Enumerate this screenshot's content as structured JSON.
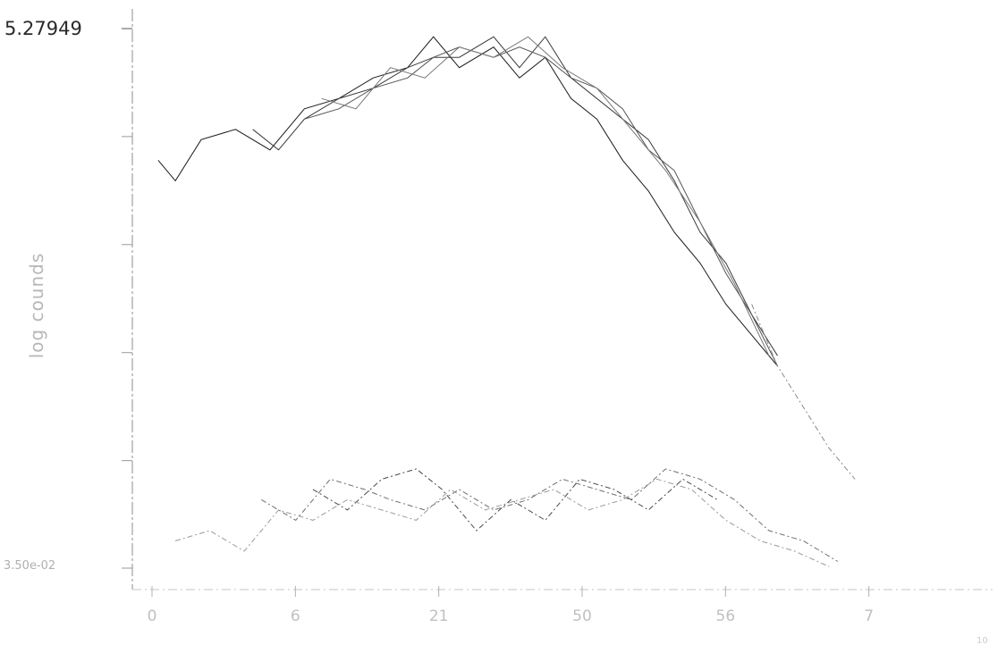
{
  "chart_data": {
    "type": "line",
    "ylabel": "log counds",
    "ytop_label": "5.27949",
    "ybottom_label": "3.50e-02",
    "xtick_labels": [
      "0",
      "6",
      "21",
      "50",
      "56",
      "7"
    ],
    "x_corner_label": "10",
    "ylim": [
      0.035,
      5.27949
    ],
    "xlim": [
      0,
      10
    ],
    "yticks": [
      5.27949,
      4.23,
      3.18,
      2.13,
      1.08,
      0.035
    ],
    "grid": false,
    "series": [
      {
        "color": "#1a1a1a",
        "style": "solid",
        "x": [
          0.3,
          0.5,
          0.8,
          1.2,
          1.6,
          2.0,
          2.4,
          2.8,
          3.2,
          3.5,
          3.8,
          4.2,
          4.5,
          4.8,
          5.1,
          5.4,
          5.7,
          6.0,
          6.3,
          6.6,
          6.9,
          7.2,
          7.5
        ],
        "y": [
          4.0,
          3.8,
          4.2,
          4.3,
          4.1,
          4.5,
          4.6,
          4.8,
          4.9,
          5.2,
          4.9,
          5.1,
          4.8,
          5.0,
          4.6,
          4.4,
          4.0,
          3.7,
          3.3,
          3.0,
          2.6,
          2.3,
          2.0
        ]
      },
      {
        "color": "#3a3a3a",
        "style": "solid",
        "x": [
          1.4,
          1.7,
          2.0,
          2.4,
          2.8,
          3.2,
          3.5,
          3.8,
          4.2,
          4.5,
          4.8,
          5.1,
          5.4,
          5.7,
          6.0,
          6.3,
          6.6,
          6.9,
          7.2,
          7.5
        ],
        "y": [
          4.3,
          4.1,
          4.4,
          4.6,
          4.7,
          4.9,
          5.0,
          5.0,
          5.2,
          4.9,
          5.2,
          4.8,
          4.6,
          4.4,
          4.2,
          3.8,
          3.3,
          3.0,
          2.5,
          2.1
        ]
      },
      {
        "color": "#555555",
        "style": "solid",
        "x": [
          2.0,
          2.4,
          2.8,
          3.2,
          3.5,
          3.8,
          4.2,
          4.5,
          4.8,
          5.1,
          5.4,
          5.7,
          6.0,
          6.3,
          6.6,
          6.9,
          7.2,
          7.5
        ],
        "y": [
          4.4,
          4.5,
          4.7,
          4.8,
          5.0,
          5.1,
          5.0,
          5.1,
          5.0,
          4.8,
          4.7,
          4.5,
          4.1,
          3.9,
          3.4,
          2.9,
          2.5,
          2.0
        ]
      },
      {
        "color": "#777777",
        "style": "solid",
        "x": [
          2.2,
          2.6,
          3.0,
          3.4,
          3.8,
          4.2,
          4.6,
          5.0,
          5.4,
          5.8,
          6.2,
          6.6,
          7.0,
          7.4
        ],
        "y": [
          4.6,
          4.5,
          4.9,
          4.8,
          5.1,
          5.0,
          5.2,
          4.9,
          4.7,
          4.3,
          3.9,
          3.4,
          2.8,
          2.1
        ]
      },
      {
        "color": "#8a8a8a",
        "style": "dashed",
        "x": [
          7.2,
          7.5,
          7.8,
          8.1,
          8.4
        ],
        "y": [
          2.6,
          2.0,
          1.6,
          1.2,
          0.9
        ]
      },
      {
        "color": "#6e6e6e",
        "style": "dashed",
        "x": [
          1.5,
          1.9,
          2.3,
          2.7,
          3.0,
          3.4,
          3.8,
          4.2,
          4.6,
          5.0,
          5.4,
          5.8,
          6.2,
          6.6,
          7.0,
          7.4,
          7.8,
          8.2
        ],
        "y": [
          0.7,
          0.5,
          0.9,
          0.8,
          0.7,
          0.6,
          0.8,
          0.6,
          0.7,
          0.9,
          0.8,
          0.7,
          1.0,
          0.9,
          0.7,
          0.4,
          0.3,
          0.1
        ]
      },
      {
        "color": "#4a4a4a",
        "style": "dashed",
        "x": [
          2.1,
          2.5,
          2.9,
          3.3,
          3.6,
          4.0,
          4.4,
          4.8,
          5.2,
          5.6,
          6.0,
          6.4,
          6.8
        ],
        "y": [
          0.8,
          0.6,
          0.9,
          1.0,
          0.8,
          0.4,
          0.7,
          0.5,
          0.9,
          0.8,
          0.6,
          0.9,
          0.7
        ]
      },
      {
        "color": "#9a9a9a",
        "style": "dashed",
        "x": [
          0.5,
          0.9,
          1.3,
          1.7,
          2.1,
          2.5,
          2.9,
          3.3,
          3.7,
          4.1,
          4.5,
          4.9,
          5.3,
          5.7,
          6.1,
          6.5,
          6.9,
          7.3,
          7.7,
          8.1
        ],
        "y": [
          0.3,
          0.4,
          0.2,
          0.6,
          0.5,
          0.7,
          0.6,
          0.5,
          0.8,
          0.6,
          0.7,
          0.8,
          0.6,
          0.7,
          0.9,
          0.8,
          0.5,
          0.3,
          0.2,
          0.05
        ]
      }
    ]
  }
}
